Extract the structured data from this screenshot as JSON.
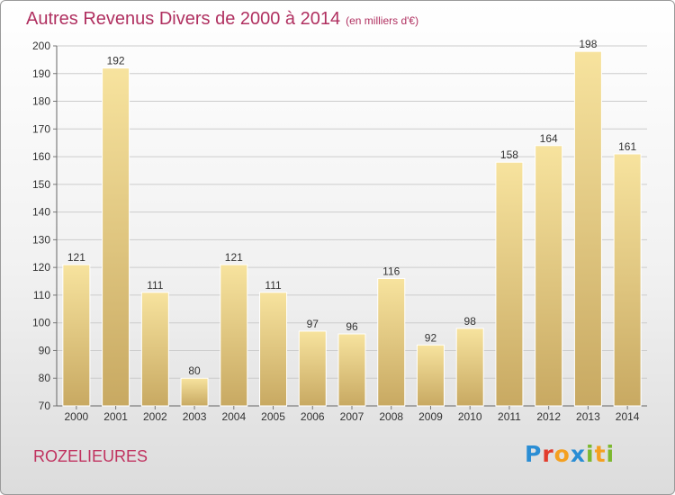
{
  "title": "Autres Revenus Divers de 2000 à 2014",
  "subtitle": "(en milliers d'€)",
  "commune": "ROZELIEURES",
  "logo": {
    "letters": [
      {
        "char": "P",
        "color": "#2a8dd4"
      },
      {
        "char": "r",
        "color": "#e23c2c"
      },
      {
        "char": "o",
        "color": "#f4a020"
      },
      {
        "char": "x",
        "color": "#2a8dd4"
      },
      {
        "char": "i",
        "color": "#7cb82f"
      },
      {
        "char": "t",
        "color": "#f4a020"
      },
      {
        "char": "i",
        "color": "#7cb82f"
      }
    ]
  },
  "chart_data": {
    "type": "bar",
    "categories": [
      "2000",
      "2001",
      "2002",
      "2003",
      "2004",
      "2005",
      "2006",
      "2007",
      "2008",
      "2009",
      "2010",
      "2011",
      "2012",
      "2013",
      "2014"
    ],
    "values": [
      121,
      192,
      111,
      80,
      121,
      111,
      97,
      96,
      116,
      92,
      98,
      158,
      164,
      198,
      161
    ],
    "ylim": [
      70,
      200
    ],
    "yticks": [
      70,
      80,
      90,
      100,
      110,
      120,
      130,
      140,
      150,
      160,
      170,
      180,
      190,
      200
    ],
    "grid": true,
    "colors": {
      "bar_light": "#f7e39e",
      "bar_dark": "#c8a962",
      "grid": "#cccccc"
    }
  }
}
